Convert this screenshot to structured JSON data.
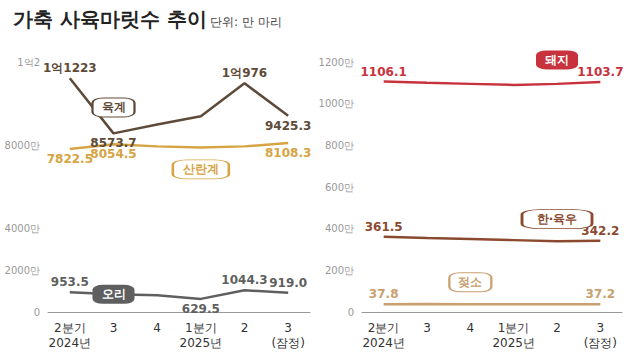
{
  "chart_data": [
    {
      "type": "line",
      "title": "가축 사육마릿수 추이",
      "subtitle": "단위: 만 마리",
      "categories": [
        "2분기\n2024년",
        "3",
        "4",
        "1분기\n2025년",
        "2",
        "3\n(잠정)"
      ],
      "ylim": [
        0,
        12000
      ],
      "yticks": [
        0,
        {
          "value": 2000,
          "label": "2000만"
        },
        {
          "value": 4000,
          "label": "4000만"
        },
        {
          "value": 8000,
          "label": "8000만"
        },
        {
          "value": 12000,
          "label": "1억2"
        }
      ],
      "grid": false,
      "data_labels": true,
      "series": [
        {
          "name": "육계",
          "color": "#5e4a38",
          "values": [
            11223,
            8573.7,
            9000,
            9400,
            10976,
            9425.3
          ],
          "value_labels": [
            "1억1223",
            "8573.7",
            null,
            null,
            "1억976",
            "9425.3"
          ]
        },
        {
          "name": "산란계",
          "color": "#d6a443",
          "values": [
            7822.5,
            8054.5,
            7950,
            7900,
            7950,
            8108.3
          ],
          "value_labels": [
            "7822.5",
            "8054.5",
            null,
            null,
            null,
            "8108.3"
          ]
        },
        {
          "name": "오리",
          "color": "#5f5f5f",
          "values": [
            953.5,
            850,
            800,
            629.5,
            1044.3,
            919.0
          ],
          "value_labels": [
            "953.5",
            null,
            null,
            "629.5",
            "1044.3",
            "919.0"
          ]
        }
      ]
    },
    {
      "type": "line",
      "categories": [
        "2분기\n2024년",
        "3",
        "4",
        "1분기\n2025년",
        "2",
        "3\n(잠정)"
      ],
      "ylim": [
        0,
        1200
      ],
      "yticks": [
        0,
        {
          "value": 200,
          "label": "200만"
        },
        {
          "value": 400,
          "label": "400만"
        },
        {
          "value": 600,
          "label": "600만"
        },
        {
          "value": 800,
          "label": "800만"
        },
        {
          "value": 1000,
          "label": "1000만"
        },
        {
          "value": 1200,
          "label": "1200만"
        }
      ],
      "grid": false,
      "data_labels": true,
      "series": [
        {
          "name": "돼지",
          "color": "#c8323c",
          "values": [
            1106.1,
            1100,
            1095,
            1090,
            1095,
            1103.7
          ],
          "value_labels": [
            "1106.1",
            null,
            null,
            null,
            null,
            "1103.7"
          ]
        },
        {
          "name": "한·육우",
          "color": "#8b4a2f",
          "values": [
            361.5,
            355,
            350,
            345,
            340,
            342.2
          ],
          "value_labels": [
            "361.5",
            null,
            null,
            null,
            null,
            "342.2"
          ]
        },
        {
          "name": "젖소",
          "color": "#c9a070",
          "values": [
            37.8,
            38,
            37.5,
            37.5,
            37.3,
            37.2
          ],
          "value_labels": [
            "37.8",
            null,
            null,
            null,
            null,
            "37.2"
          ]
        }
      ]
    }
  ]
}
